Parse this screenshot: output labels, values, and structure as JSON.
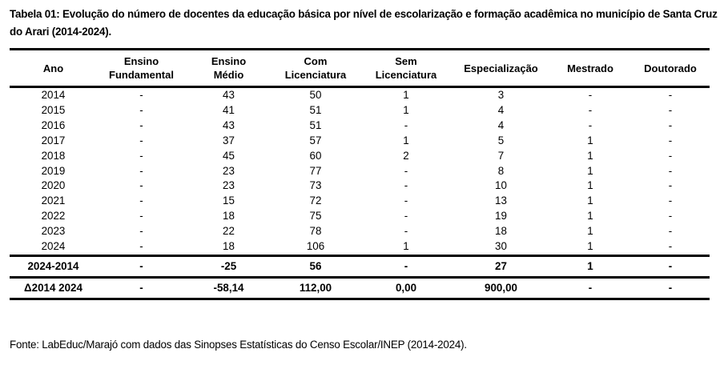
{
  "title": "Tabela 01: Evolução do número de docentes da educação básica por nível de escolarização e formação acadêmica no município de Santa Cruz do Arari (2014-2024).",
  "columns": [
    [
      "Ano",
      ""
    ],
    [
      "Ensino",
      "Fundamental"
    ],
    [
      "Ensino",
      "Médio"
    ],
    [
      "Com",
      "Licenciatura"
    ],
    [
      "Sem",
      "Licenciatura"
    ],
    [
      "Especialização",
      ""
    ],
    [
      "Mestrado",
      ""
    ],
    [
      "Doutorado",
      ""
    ]
  ],
  "rows": [
    [
      "2014",
      "-",
      "43",
      "50",
      "1",
      "3",
      "-",
      "-"
    ],
    [
      "2015",
      "-",
      "41",
      "51",
      "1",
      "4",
      "-",
      "-"
    ],
    [
      "2016",
      "-",
      "43",
      "51",
      "-",
      "4",
      "-",
      "-"
    ],
    [
      "2017",
      "-",
      "37",
      "57",
      "1",
      "5",
      "1",
      "-"
    ],
    [
      "2018",
      "-",
      "45",
      "60",
      "2",
      "7",
      "1",
      "-"
    ],
    [
      "2019",
      "-",
      "23",
      "77",
      "-",
      "8",
      "1",
      "-"
    ],
    [
      "2020",
      "-",
      "23",
      "73",
      "-",
      "10",
      "1",
      "-"
    ],
    [
      "2021",
      "-",
      "15",
      "72",
      "-",
      "13",
      "1",
      "-"
    ],
    [
      "2022",
      "-",
      "18",
      "75",
      "-",
      "19",
      "1",
      "-"
    ],
    [
      "2023",
      "-",
      "22",
      "78",
      "-",
      "18",
      "1",
      "-"
    ],
    [
      "2024",
      "-",
      "18",
      "106",
      "1",
      "30",
      "1",
      "-"
    ]
  ],
  "summary": [
    [
      "2024-2014",
      "-",
      "-25",
      "56",
      "-",
      "27",
      "1",
      "-"
    ],
    [
      "Δ2014 2024",
      "-",
      "-58,14",
      "112,00",
      "0,00",
      "900,00",
      "-",
      "-"
    ]
  ],
  "source": "Fonte: LabEduc/Marajó com dados das Sinopses Estatísticas do Censo Escolar/INEP (2014-2024)."
}
